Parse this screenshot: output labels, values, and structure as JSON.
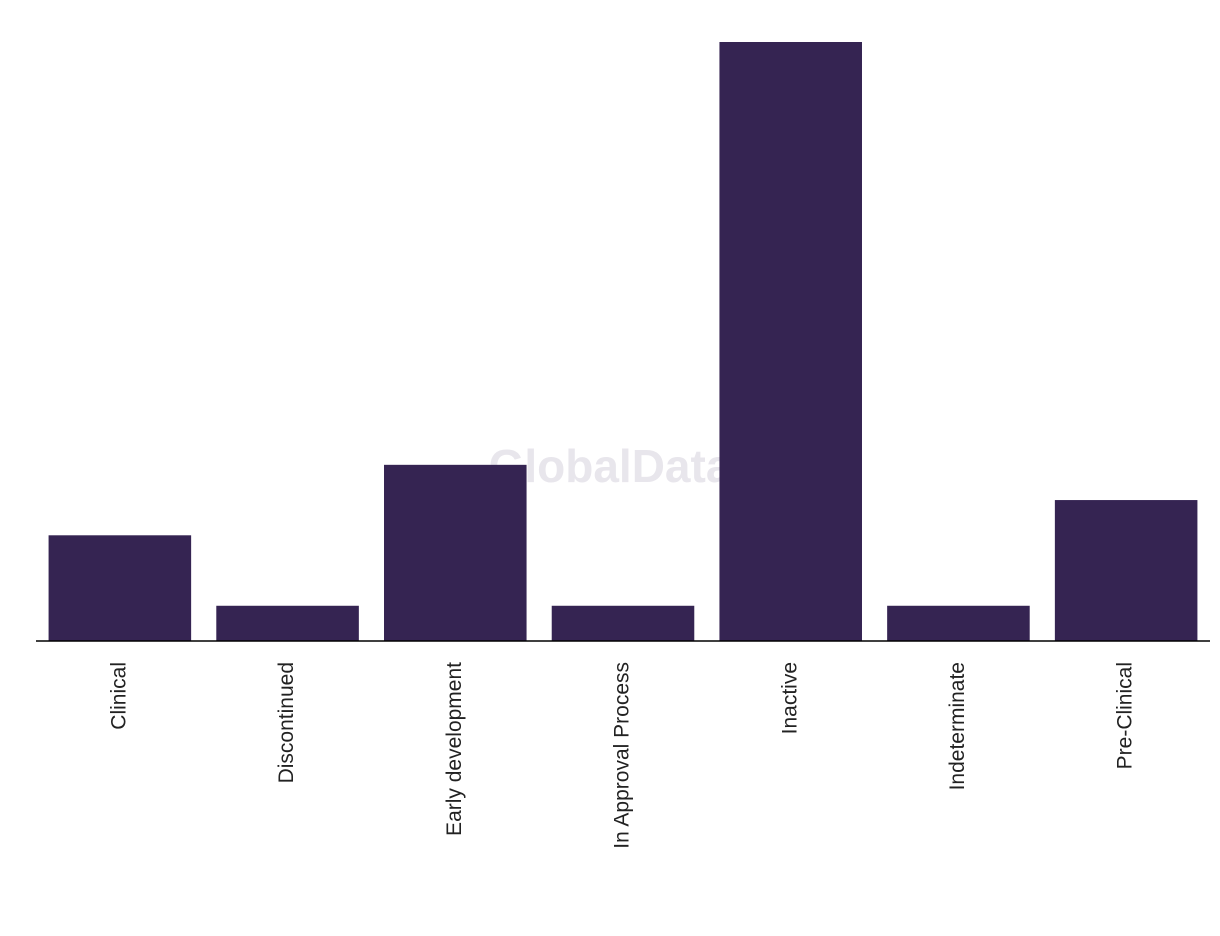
{
  "chart_data": {
    "type": "bar",
    "categories": [
      "Clinical",
      "Discontinued",
      "Early development",
      "In Approval Process",
      "Inactive",
      "Indeterminate",
      "Pre-Clinical"
    ],
    "values": [
      3,
      1,
      5,
      1,
      17,
      1,
      4
    ],
    "color": "#352452",
    "watermark": "GlobalData"
  }
}
